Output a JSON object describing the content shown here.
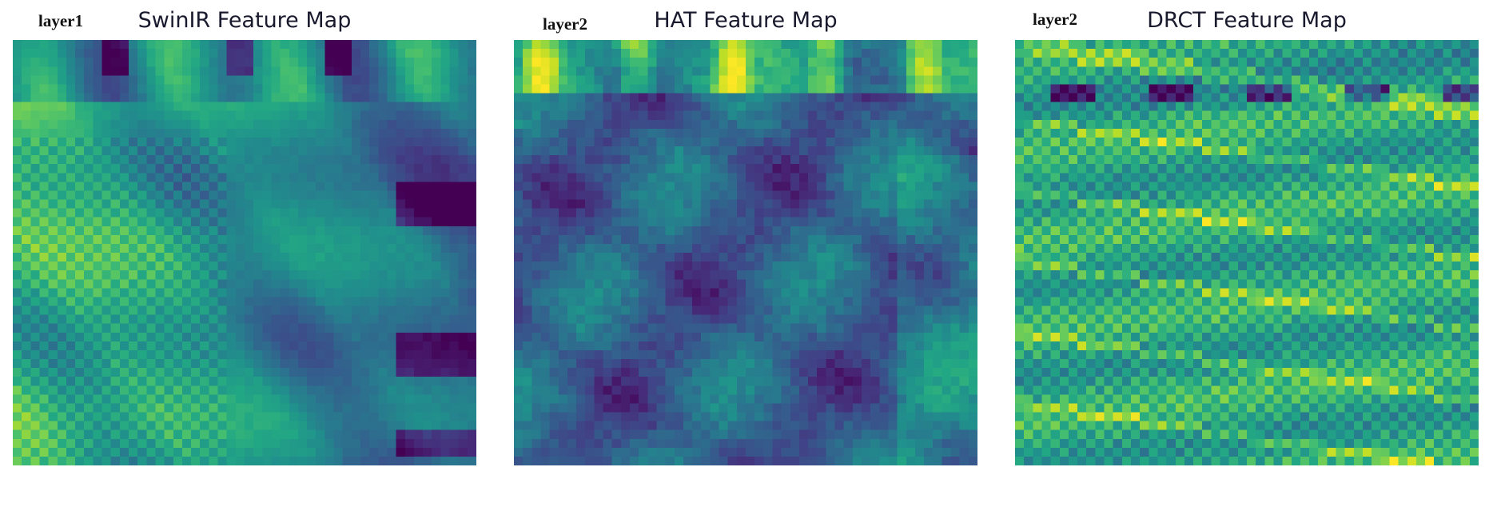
{
  "panels": [
    {
      "layer": "layer1",
      "title": "SwinIR Feature Map",
      "style": "swinir"
    },
    {
      "layer": "layer2",
      "title": "HAT Feature Map",
      "style": "hat"
    },
    {
      "layer": "layer2",
      "title": "DRCT Feature Map",
      "style": "drct"
    }
  ],
  "colormap": "viridis"
}
